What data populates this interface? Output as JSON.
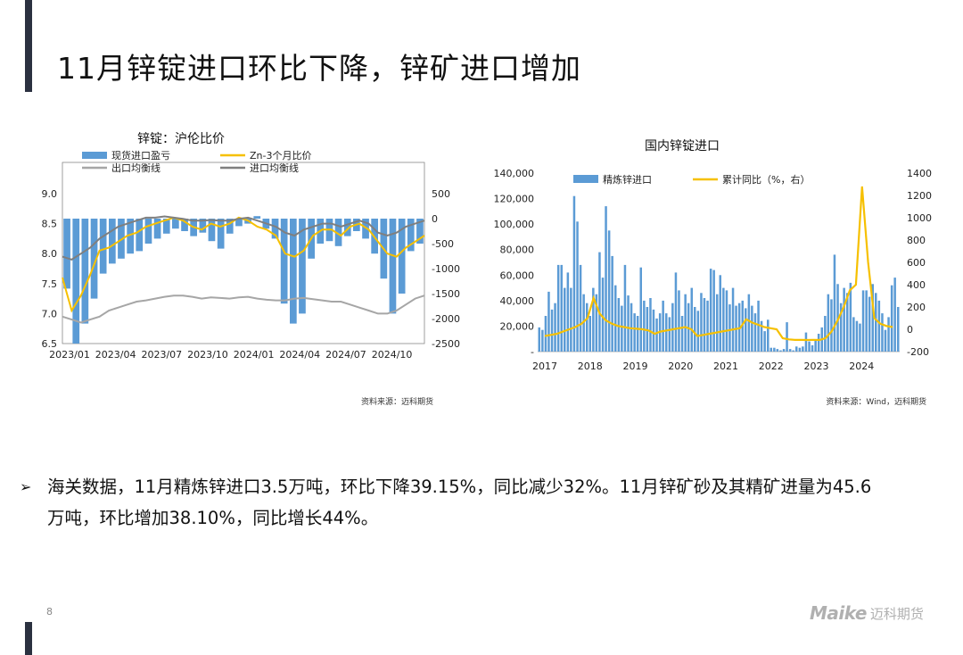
{
  "title": "11月锌锭进口环比下降，锌矿进口增加",
  "page_number": "8",
  "logo": {
    "mark": "Maike",
    "name": "迈科期货"
  },
  "bullet": {
    "icon": "arrow-bullet-icon",
    "glyph": "➢",
    "line1": "海关数据，11月精炼锌进口3.5万吨，环比下降39.15%，同比减少32%。11月锌矿砂及其精矿进量为45.6",
    "line2": "万吨，环比增加38.10%，同比增长44%。"
  },
  "colors": {
    "bar_blue": "#5b9bd5",
    "line_yellow": "#f6c000",
    "line_light_gray": "#a6a6a6",
    "line_dark_gray": "#7f7f7f",
    "accent_bar": "#2b3140"
  },
  "chart_data": [
    {
      "type": "bar",
      "title": "锌锭：沪伦比价",
      "source": "资料来源：迈科期货",
      "legend": [
        "现货进口盈亏",
        "Zn-3个月比价",
        "出口均衡线",
        "进口均衡线"
      ],
      "legend_placement": "top",
      "x_tick_labels": [
        "2023/01",
        "2023/04",
        "2023/07",
        "2023/10",
        "2024/01",
        "2024/04",
        "2024/07",
        "2024/10"
      ],
      "y_left": {
        "ylim": [
          6.5,
          9.0
        ],
        "tick_labels": [
          "9.0",
          "8.5",
          "8.0",
          "7.5",
          "7.0",
          "6.5"
        ]
      },
      "y_right": {
        "ylim": [
          -2500,
          500
        ],
        "tick_labels": [
          "500",
          "0",
          "-500",
          "-1000",
          "-1500",
          "-2000",
          "-2500"
        ]
      },
      "grid": false,
      "series": [
        {
          "name": "现货进口盈亏",
          "axis": "right",
          "kind": "bar",
          "values": [
            -1400,
            -2500,
            -2100,
            -1600,
            -1100,
            -900,
            -800,
            -700,
            -650,
            -500,
            -400,
            -300,
            -200,
            -250,
            -350,
            -280,
            -450,
            -600,
            -300,
            -150,
            -100,
            50,
            -200,
            -400,
            -1700,
            -2100,
            -1900,
            -800,
            -500,
            -450,
            -550,
            -350,
            -250,
            -400,
            -700,
            -1200,
            -1900,
            -1500,
            -650,
            -500
          ]
        },
        {
          "name": "Zn-3个月比价",
          "axis": "left",
          "kind": "line",
          "values": [
            7.6,
            7.05,
            7.3,
            7.65,
            8.05,
            8.1,
            8.2,
            8.3,
            8.35,
            8.45,
            8.5,
            8.55,
            8.6,
            8.55,
            8.45,
            8.4,
            8.5,
            8.45,
            8.5,
            8.6,
            8.55,
            8.45,
            8.4,
            8.3,
            8.0,
            7.95,
            8.05,
            8.3,
            8.4,
            8.4,
            8.3,
            8.45,
            8.5,
            8.4,
            8.2,
            8.0,
            7.95,
            8.1,
            8.2,
            8.3
          ]
        },
        {
          "name": "出口均衡线",
          "axis": "left",
          "kind": "line",
          "values": [
            6.95,
            6.9,
            6.85,
            6.9,
            6.95,
            7.05,
            7.1,
            7.15,
            7.2,
            7.22,
            7.25,
            7.28,
            7.3,
            7.3,
            7.28,
            7.25,
            7.27,
            7.26,
            7.25,
            7.27,
            7.28,
            7.25,
            7.23,
            7.22,
            7.22,
            7.25,
            7.26,
            7.24,
            7.22,
            7.2,
            7.2,
            7.15,
            7.1,
            7.05,
            7.0,
            7.0,
            7.05,
            7.15,
            7.25,
            7.3
          ]
        },
        {
          "name": "进口均衡线",
          "axis": "left",
          "kind": "line",
          "values": [
            7.95,
            7.9,
            8.0,
            8.1,
            8.25,
            8.35,
            8.45,
            8.5,
            8.55,
            8.6,
            8.6,
            8.62,
            8.6,
            8.58,
            8.55,
            8.55,
            8.56,
            8.55,
            8.55,
            8.58,
            8.6,
            8.55,
            8.5,
            8.45,
            8.35,
            8.3,
            8.4,
            8.45,
            8.5,
            8.5,
            8.45,
            8.5,
            8.55,
            8.5,
            8.35,
            8.3,
            8.35,
            8.45,
            8.5,
            8.55
          ]
        }
      ]
    },
    {
      "type": "bar",
      "title": "国内锌锭进口",
      "source": "资料来源：Wind，迈科期货",
      "legend": [
        "精炼锌进口",
        "累计同比（%，右）"
      ],
      "legend_placement": "top",
      "x_tick_labels": [
        "2017",
        "2018",
        "2019",
        "2020",
        "2021",
        "2022",
        "2023",
        "2024"
      ],
      "y_left": {
        "ylim": [
          0,
          140000
        ],
        "tick_labels": [
          "140,000",
          "120,000",
          "100,000",
          "80,000",
          "60,000",
          "40,000",
          "20,000",
          "-"
        ]
      },
      "y_right": {
        "ylim": [
          -200,
          1400
        ],
        "tick_labels": [
          "1400",
          "1200",
          "1000",
          "800",
          "600",
          "400",
          "200",
          "0",
          "-200"
        ]
      },
      "grid": false,
      "series": [
        {
          "name": "精炼锌进口",
          "axis": "left",
          "kind": "bar",
          "values": [
            19000,
            17000,
            28000,
            47000,
            33000,
            38000,
            68000,
            68000,
            50000,
            62000,
            50000,
            122000,
            102000,
            68000,
            45000,
            38000,
            28000,
            50000,
            45000,
            78000,
            58000,
            114000,
            95000,
            75000,
            52000,
            42000,
            36000,
            68000,
            44000,
            38000,
            30000,
            28000,
            66000,
            40000,
            35000,
            42000,
            33000,
            26000,
            30000,
            40000,
            30000,
            27000,
            38000,
            62000,
            48000,
            28000,
            45000,
            38000,
            50000,
            35000,
            32000,
            46000,
            42000,
            40000,
            65000,
            64000,
            45000,
            60000,
            50000,
            48000,
            37000,
            50000,
            36000,
            38000,
            40000,
            34000,
            45000,
            36000,
            30000,
            40000,
            24000,
            16000,
            25000,
            3000,
            3000,
            2000,
            1000,
            2000,
            23000,
            2000,
            1000,
            4000,
            3000,
            4000,
            15000,
            8000,
            5000,
            9000,
            14000,
            19000,
            28000,
            45000,
            41000,
            76000,
            53000,
            38000,
            50000,
            46000,
            54000,
            27000,
            24000,
            22000,
            48000,
            48000,
            43000,
            53000,
            46000,
            40000,
            30000,
            17000,
            27000,
            52000,
            58000,
            35000
          ]
        },
        {
          "name": "累计同比（%，右）",
          "axis": "right",
          "kind": "line",
          "values": [
            -60,
            -50,
            -40,
            -20,
            0,
            20,
            50,
            100,
            280,
            140,
            80,
            50,
            30,
            20,
            10,
            5,
            0,
            -10,
            -40,
            -20,
            -10,
            0,
            10,
            20,
            0,
            -60,
            -50,
            -40,
            -30,
            -20,
            -10,
            0,
            10,
            90,
            60,
            40,
            20,
            10,
            0,
            -80,
            -90,
            -95,
            -95,
            -96,
            -94,
            -96,
            -80,
            -20,
            80,
            200,
            350,
            400,
            1280,
            600,
            100,
            50,
            30,
            20
          ]
        }
      ]
    }
  ]
}
